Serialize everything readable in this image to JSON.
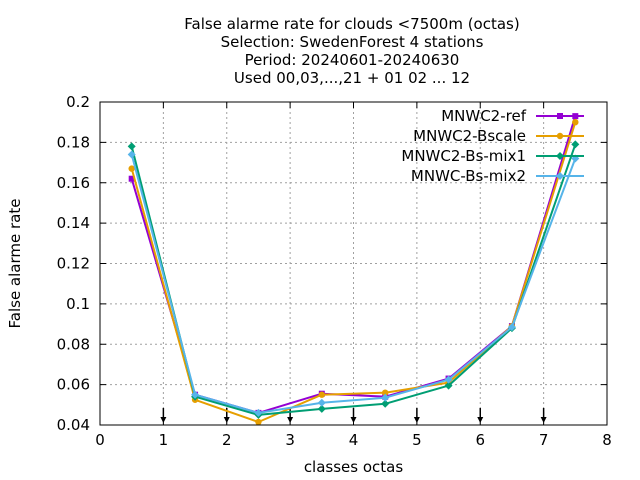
{
  "chart_data": {
    "type": "line",
    "title_lines": [
      "False alarme rate  for clouds <7500m (octas)",
      "Selection: SwedenForest      4 stations",
      "Period: 20240601-20240630",
      "Used 00,03,...,21 + 01 02 ... 12"
    ],
    "xlabel": "classes octas",
    "ylabel": "False alarme rate",
    "xlim": [
      0,
      8
    ],
    "ylim": [
      0.04,
      0.2
    ],
    "xticks": [
      0,
      1,
      2,
      3,
      4,
      5,
      6,
      7,
      8
    ],
    "yticks": [
      0.04,
      0.06,
      0.08,
      0.1,
      0.12,
      0.14,
      0.16,
      0.18,
      0.2
    ],
    "xtick_labels": [
      "0",
      "1",
      "2",
      "3",
      "4",
      "5",
      "6",
      "7",
      "8"
    ],
    "ytick_labels": [
      "0.04",
      "0.06",
      "0.08",
      "0.1",
      "0.12",
      "0.14",
      "0.16",
      "0.18",
      "0.2"
    ],
    "grid": true,
    "legend_position": "top-right",
    "x": [
      0.5,
      1.5,
      2.5,
      3.5,
      4.5,
      5.5,
      6.5,
      7.5
    ],
    "arrow_markers_x": [
      1,
      2,
      3,
      4,
      5,
      6,
      7
    ],
    "series": [
      {
        "name": "MNWC2-ref",
        "color": "#9400d3",
        "marker": "square",
        "values": [
          0.162,
          0.055,
          0.046,
          0.0555,
          0.054,
          0.063,
          0.089,
          0.193
        ]
      },
      {
        "name": "MNWC2-Bscale",
        "color": "#e69f00",
        "marker": "circle",
        "values": [
          0.167,
          0.0525,
          0.0415,
          0.055,
          0.056,
          0.061,
          0.089,
          0.19
        ]
      },
      {
        "name": "MNWC2-Bs-mix1",
        "color": "#009e73",
        "marker": "diamond",
        "values": [
          0.178,
          0.054,
          0.045,
          0.048,
          0.0505,
          0.0595,
          0.088,
          0.179
        ]
      },
      {
        "name": "MNWC-Bs-mix2",
        "color": "#56b4e9",
        "marker": "diamond",
        "values": [
          0.174,
          0.055,
          0.046,
          0.051,
          0.0535,
          0.0625,
          0.0885,
          0.172
        ]
      }
    ]
  }
}
